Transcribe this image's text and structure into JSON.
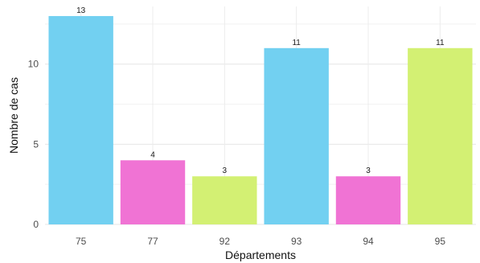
{
  "chart_data": {
    "type": "bar",
    "xlabel": "Départements",
    "ylabel": "Nombre de cas",
    "categories": [
      "75",
      "77",
      "92",
      "93",
      "94",
      "95"
    ],
    "values": [
      13,
      4,
      3,
      11,
      3,
      11
    ],
    "bar_colors": [
      "#72d0f1",
      "#f073d4",
      "#d3f073",
      "#72d0f1",
      "#f073d4",
      "#d3f073"
    ],
    "y_ticks": [
      0,
      5,
      10
    ],
    "ylim": [
      0,
      13.6
    ],
    "grid": true,
    "legend": "none"
  }
}
